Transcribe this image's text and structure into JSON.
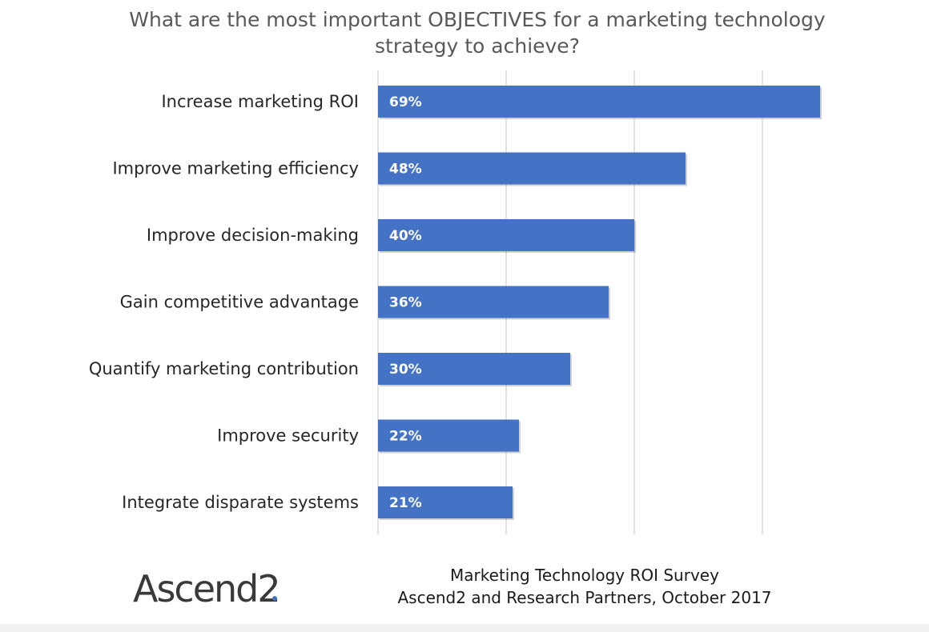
{
  "chart_data": {
    "type": "bar",
    "orientation": "horizontal",
    "title": "What are the most important OBJECTIVES for a marketing technology strategy to achieve?",
    "title_lines": [
      "What are the most important OBJECTIVES for a marketing technology",
      "strategy to achieve?"
    ],
    "categories": [
      "Increase marketing ROI",
      "Improve marketing efficiency",
      "Improve decision-making",
      "Gain competitive advantage",
      "Quantify marketing contribution",
      "Improve security",
      "Integrate disparate systems"
    ],
    "values": [
      69,
      48,
      40,
      36,
      30,
      22,
      21
    ],
    "value_labels": [
      "69%",
      "48%",
      "40%",
      "36%",
      "30%",
      "22%",
      "21%"
    ],
    "xlim": [
      0,
      80
    ],
    "grid": true,
    "gridline_values": [
      0,
      20,
      40,
      60
    ],
    "legend": "none",
    "bar_color": "#4472c4"
  },
  "logo": {
    "text": "Ascend2"
  },
  "source": {
    "line1": "Marketing Technology ROI Survey",
    "line2": "Ascend2 and Research Partners, October 2017"
  }
}
